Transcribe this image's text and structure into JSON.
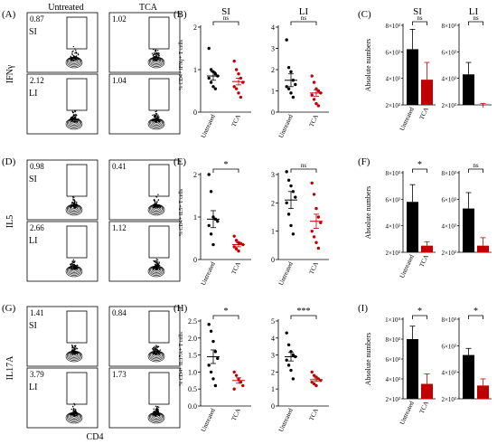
{
  "figure": {
    "colors": {
      "untreated": "#000000",
      "tca": "#c00000",
      "facs_box": "#000000"
    },
    "rows": [
      {
        "cytokine": "IFNγ",
        "facs_letter": "(A)",
        "dot_letter": "(B)",
        "bar_letter": "(C)",
        "facs": {
          "column_titles": [
            "Untreated",
            "TCA"
          ],
          "tissues": [
            "SI",
            "LI"
          ],
          "percentages": [
            [
              "0.87",
              "1.02"
            ],
            [
              "2.12",
              "1.04"
            ]
          ]
        },
        "dot": {
          "ylabel": "% CD4+ IFNγ+ T cells",
          "panels": [
            {
              "title": "SI",
              "ylim": [
                0,
                2
              ],
              "ticks": [
                "0",
                "1",
                "2"
              ],
              "sig": "ns",
              "categories": [
                "Untreated",
                "TCA"
              ],
              "untreated": [
                1.5,
                1.0,
                0.95,
                0.9,
                0.85,
                0.8,
                0.7,
                0.6,
                0.55
              ],
              "tca": [
                1.2,
                1.0,
                0.9,
                0.8,
                0.7,
                0.6,
                0.55,
                0.45,
                0.35
              ],
              "mean": [
                0.85,
                0.72
              ],
              "sem": [
                0.1,
                0.08
              ]
            },
            {
              "title": "LI",
              "ylim": [
                0,
                4
              ],
              "ticks": [
                "0",
                "1",
                "2",
                "3",
                "4"
              ],
              "sig": "ns",
              "categories": [
                "Untreated",
                "TCA"
              ],
              "untreated": [
                3.4,
                2.1,
                1.9,
                1.5,
                1.3,
                1.2,
                1.1,
                0.9,
                0.7
              ],
              "tca": [
                1.7,
                1.4,
                1.1,
                1.0,
                0.9,
                0.8,
                0.6,
                0.4,
                0.3
              ],
              "mean": [
                1.5,
                0.9
              ],
              "sem": [
                0.3,
                0.15
              ]
            }
          ]
        },
        "bar": {
          "ylabel": "Absolute numbers",
          "panels": [
            {
              "title": "SI",
              "ticks": [
                "2×10³",
                "4×10³",
                "6×10³",
                "8×10³"
              ],
              "ylim": [
                2000,
                8000
              ],
              "values": [
                6200,
                3900
              ],
              "err": [
                1500,
                1300
              ],
              "sig": "ns",
              "categories": [
                "Untreated",
                "TCA"
              ]
            },
            {
              "title": "LI",
              "ticks": [
                "2×10³",
                "4×10³",
                "6×10³",
                "8×10³"
              ],
              "ylim": [
                2000,
                8000
              ],
              "values": [
                4300,
                1800
              ],
              "err": [
                900,
                300
              ],
              "sig": "ns",
              "categories": [
                "Untreated",
                "TCA"
              ]
            }
          ]
        }
      },
      {
        "cytokine": "IL5",
        "facs_letter": "(D)",
        "dot_letter": "(E)",
        "bar_letter": "(F)",
        "facs": {
          "column_titles": [
            "",
            ""
          ],
          "tissues": [
            "SI",
            "LI"
          ],
          "percentages": [
            [
              "0.98",
              "0.41"
            ],
            [
              "2.66",
              "1.12"
            ]
          ]
        },
        "dot": {
          "ylabel": "% CD4+ IL5+ T cells",
          "panels": [
            {
              "title": "",
              "ylim": [
                0,
                2
              ],
              "ticks": [
                "0",
                "1",
                "2"
              ],
              "sig": "*",
              "categories": [
                "Untreated",
                "TCA"
              ],
              "untreated": [
                2.0,
                1.6,
                1.0,
                0.95,
                0.9,
                0.8,
                0.6,
                0.35
              ],
              "tca": [
                0.55,
                0.45,
                0.4,
                0.38,
                0.35,
                0.3,
                0.25,
                0.2
              ],
              "mean": [
                0.95,
                0.35
              ],
              "sem": [
                0.2,
                0.05
              ]
            },
            {
              "title": "",
              "ylim": [
                0,
                3
              ],
              "ticks": [
                "0",
                "1",
                "2",
                "3"
              ],
              "sig": "ns",
              "categories": [
                "Untreated",
                "TCA"
              ],
              "untreated": [
                3.1,
                2.8,
                2.6,
                2.4,
                2.2,
                2.0,
                1.6,
                1.2,
                0.9
              ],
              "tca": [
                2.7,
                2.3,
                1.8,
                1.5,
                1.3,
                1.0,
                0.8,
                0.6,
                0.4
              ],
              "mean": [
                2.1,
                1.35
              ],
              "sem": [
                0.3,
                0.25
              ]
            }
          ]
        },
        "bar": {
          "ylabel": "Absolute numbers",
          "panels": [
            {
              "title": "",
              "ticks": [
                "2×10³",
                "4×10³",
                "6×10³",
                "8×10³"
              ],
              "ylim": [
                2000,
                8000
              ],
              "values": [
                5800,
                2500
              ],
              "err": [
                1300,
                300
              ],
              "sig": "*",
              "categories": [
                "Untreated",
                "TCA"
              ]
            },
            {
              "title": "",
              "ticks": [
                "2×10³",
                "4×10³",
                "6×10³",
                "8×10³"
              ],
              "ylim": [
                2000,
                8000
              ],
              "values": [
                5300,
                2500
              ],
              "err": [
                1200,
                600
              ],
              "sig": "ns",
              "categories": [
                "Untreated",
                "TCA"
              ]
            }
          ]
        }
      },
      {
        "cytokine": "IL17A",
        "facs_letter": "(G)",
        "dot_letter": "(H)",
        "bar_letter": "(I)",
        "facs": {
          "column_titles": [
            "",
            ""
          ],
          "tissues": [
            "SI",
            "LI"
          ],
          "percentages": [
            [
              "1.41",
              "0.84"
            ],
            [
              "3.79",
              "1.73"
            ]
          ],
          "xlabel": "CD4"
        },
        "dot": {
          "ylabel": "% CD4+ IL17A+ T cells",
          "panels": [
            {
              "title": "",
              "ylim": [
                0,
                2.5
              ],
              "ticks": [
                "0.0",
                "0.5",
                "1.0",
                "1.5",
                "2.0",
                "2.5"
              ],
              "sig": "*",
              "categories": [
                "Untreated",
                "TCA"
              ],
              "untreated": [
                2.4,
                2.2,
                1.9,
                1.6,
                1.4,
                1.2,
                1.0,
                0.8,
                0.6
              ],
              "tca": [
                1.0,
                0.9,
                0.8,
                0.7,
                0.6,
                0.5
              ],
              "mean": [
                1.45,
                0.75
              ],
              "sem": [
                0.2,
                0.08
              ]
            },
            {
              "title": "",
              "ylim": [
                0,
                5
              ],
              "ticks": [
                "0",
                "1",
                "2",
                "3",
                "4",
                "5"
              ],
              "sig": "***",
              "categories": [
                "Untreated",
                "TCA"
              ],
              "untreated": [
                4.3,
                3.6,
                3.2,
                3.0,
                2.9,
                2.7,
                2.4,
                2.1,
                1.6
              ],
              "tca": [
                2.0,
                1.8,
                1.7,
                1.6,
                1.5,
                1.4,
                1.3,
                1.2
              ],
              "mean": [
                2.9,
                1.55
              ],
              "sem": [
                0.25,
                0.1
              ]
            }
          ]
        },
        "bar": {
          "ylabel": "Absolute numbers",
          "panels": [
            {
              "title": "",
              "ticks": [
                "2×10³",
                "4×10³",
                "6×10³",
                "8×10³",
                "1×10⁴"
              ],
              "ylim": [
                2000,
                10000
              ],
              "values": [
                8000,
                3500
              ],
              "err": [
                1300,
                1000
              ],
              "sig": "*",
              "categories": [
                "Untreated",
                "TCA"
              ]
            },
            {
              "title": "",
              "ticks": [
                "2×10³",
                "4×10³",
                "6×10³",
                "8×10³"
              ],
              "ylim": [
                2000,
                8000
              ],
              "values": [
                5300,
                3000
              ],
              "err": [
                500,
                500
              ],
              "sig": "*",
              "categories": [
                "Untreated",
                "TCA"
              ]
            }
          ]
        }
      }
    ]
  }
}
